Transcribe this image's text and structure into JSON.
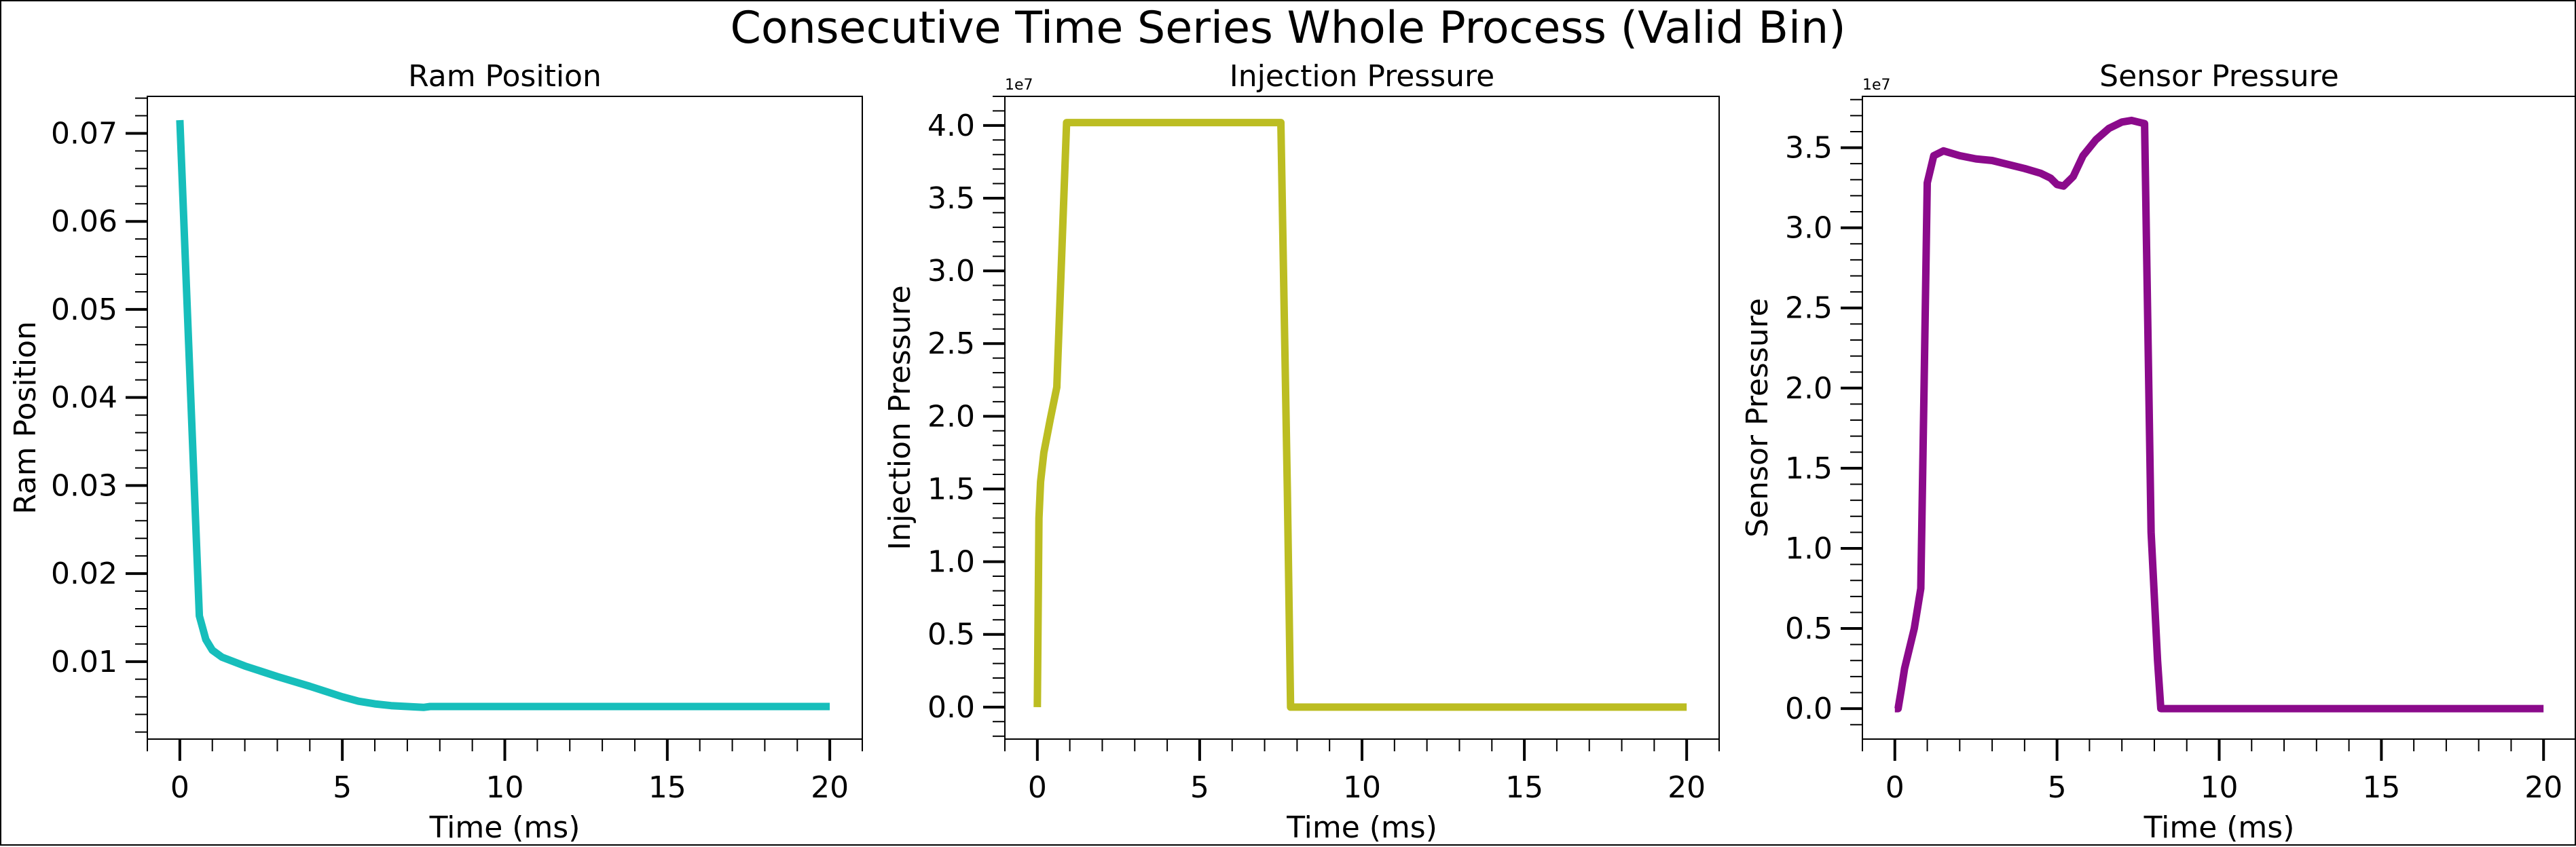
{
  "figure": {
    "suptitle": "Consecutive Time Series Whole Process (Valid Bin)"
  },
  "chart_data": [
    {
      "type": "line",
      "title": "Ram Position",
      "xlabel": "Time (ms)",
      "ylabel": "Ram Position",
      "offset_text": "",
      "xlim": [
        -1,
        21
      ],
      "ylim": [
        0.0012,
        0.0742
      ],
      "x_ticks": [
        0,
        5,
        10,
        15,
        20
      ],
      "x_tick_labels": [
        "0",
        "5",
        "10",
        "15",
        "20"
      ],
      "y_ticks": [
        0.01,
        0.02,
        0.03,
        0.04,
        0.05,
        0.06,
        0.07
      ],
      "y_tick_labels": [
        "0.01",
        "0.02",
        "0.03",
        "0.04",
        "0.05",
        "0.06",
        "0.07"
      ],
      "minor_x_step": 1,
      "minor_y_step": 0.002,
      "color": "#17BEBB",
      "series": [
        {
          "x": [
            0,
            0.6,
            0.8,
            1.0,
            1.3,
            2.0,
            3.0,
            4.0,
            5.0,
            5.5,
            6.0,
            6.5,
            7.0,
            7.5,
            7.7,
            8.0,
            10,
            15,
            20
          ],
          "values": [
            0.0715,
            0.0152,
            0.0125,
            0.0113,
            0.0105,
            0.0095,
            0.0083,
            0.0072,
            0.006,
            0.0055,
            0.0052,
            0.005,
            0.0049,
            0.0048,
            0.0049,
            0.0049,
            0.0049,
            0.0049,
            0.0049
          ]
        }
      ]
    },
    {
      "type": "line",
      "title": "Injection Pressure",
      "xlabel": "Time (ms)",
      "ylabel": "Injection Pressure",
      "offset_text": "1e7",
      "xlim": [
        -1,
        21
      ],
      "ylim": [
        -0.22,
        4.2
      ],
      "x_ticks": [
        0,
        5,
        10,
        15,
        20
      ],
      "x_tick_labels": [
        "0",
        "5",
        "10",
        "15",
        "20"
      ],
      "y_ticks": [
        0.0,
        0.5,
        1.0,
        1.5,
        2.0,
        2.5,
        3.0,
        3.5,
        4.0
      ],
      "y_tick_labels": [
        "0.0",
        "0.5",
        "1.0",
        "1.5",
        "2.0",
        "2.5",
        "3.0",
        "3.5",
        "4.0"
      ],
      "minor_x_step": 1,
      "minor_y_step": 0.1,
      "color": "#BCBD22",
      "series": [
        {
          "x": [
            0,
            0.05,
            0.1,
            0.2,
            0.4,
            0.6,
            0.9,
            7.5,
            7.7,
            7.8,
            10,
            15,
            20
          ],
          "values": [
            0.0,
            1.3,
            1.55,
            1.75,
            1.98,
            2.2,
            4.02,
            4.02,
            1.5,
            0.0,
            0.0,
            0.0,
            0.0
          ]
        }
      ]
    },
    {
      "type": "line",
      "title": "Sensor Pressure",
      "xlabel": "Time (ms)",
      "ylabel": "Sensor Pressure",
      "offset_text": "1e7",
      "xlim": [
        -1,
        21
      ],
      "ylim": [
        -0.19,
        3.82
      ],
      "x_ticks": [
        0,
        5,
        10,
        15,
        20
      ],
      "x_tick_labels": [
        "0",
        "5",
        "10",
        "15",
        "20"
      ],
      "y_ticks": [
        0.0,
        0.5,
        1.0,
        1.5,
        2.0,
        2.5,
        3.0,
        3.5
      ],
      "y_tick_labels": [
        "0.0",
        "0.5",
        "1.0",
        "1.5",
        "2.0",
        "2.5",
        "3.0",
        "3.5"
      ],
      "minor_x_step": 1,
      "minor_y_step": 0.1,
      "color": "#8B0A8B",
      "series": [
        {
          "x": [
            0,
            0.1,
            0.2,
            0.3,
            0.6,
            0.8,
            0.9,
            1.0,
            1.2,
            1.5,
            2.0,
            2.5,
            3.0,
            4.0,
            4.5,
            4.8,
            5.0,
            5.2,
            5.5,
            5.8,
            6.2,
            6.6,
            7.0,
            7.3,
            7.5,
            7.7,
            7.9,
            8.1,
            8.2,
            8.5,
            10,
            15,
            20
          ],
          "values": [
            0.0,
            0.0,
            0.12,
            0.25,
            0.5,
            0.75,
            2.0,
            3.28,
            3.45,
            3.48,
            3.45,
            3.43,
            3.42,
            3.37,
            3.34,
            3.31,
            3.27,
            3.26,
            3.32,
            3.45,
            3.55,
            3.62,
            3.66,
            3.67,
            3.66,
            3.65,
            1.1,
            0.3,
            0.0,
            0.0,
            0.0,
            0.0,
            0.0
          ]
        }
      ]
    }
  ]
}
